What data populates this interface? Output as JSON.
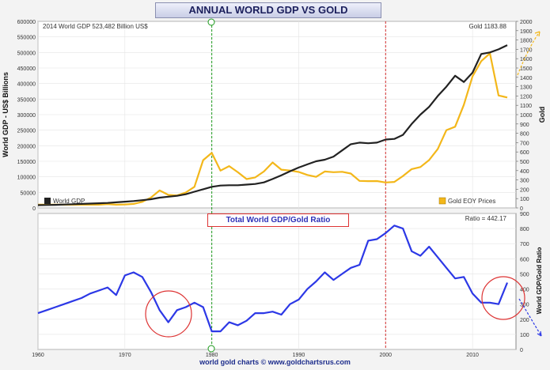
{
  "header": {
    "title": "ANNUAL WORLD GDP VS GOLD",
    "gdp_note": "2014  World GDP 523,482 Billion US$",
    "gold_note": "Gold 1183.88",
    "ratio_note": "Ratio = 442.17",
    "ratio_box": "Total World GDP/Gold Ratio",
    "footer": "world gold charts © www.goldchartsrus.com"
  },
  "colors": {
    "gdp": "#222222",
    "gold": "#f3b71a",
    "ratio": "#2c38e6",
    "green_line": "#1a9a1a",
    "red_line": "#d22b2b",
    "circle": "#dd3333"
  },
  "chart_data": [
    {
      "type": "line",
      "title": "ANNUAL WORLD GDP VS GOLD",
      "ylabel": "World GDP - US$ Billions",
      "y2label": "Gold",
      "xlim": [
        1960,
        2015
      ],
      "ylim": [
        0,
        600000
      ],
      "y2lim": [
        0,
        2000
      ],
      "x_ticks": [
        "1960",
        "1970",
        "1980",
        "1990",
        "2000",
        "2010"
      ],
      "y_ticks": [
        "0",
        "50000",
        "100000",
        "150000",
        "200000",
        "250000",
        "300000",
        "350000",
        "400000",
        "450000",
        "500000",
        "550000",
        "600000"
      ],
      "y2_ticks": [
        "0",
        "100",
        "200",
        "300",
        "400",
        "500",
        "600",
        "700",
        "800",
        "900",
        "1000",
        "1100",
        "1200",
        "1300",
        "1400",
        "1500",
        "1600",
        "1700",
        "1800",
        "1900",
        "2000"
      ],
      "legend": [
        "World GDP",
        "Gold EOY Prices"
      ],
      "series": [
        {
          "name": "World GDP",
          "x": [
            1960,
            1961,
            1962,
            1963,
            1964,
            1965,
            1966,
            1967,
            1968,
            1969,
            1970,
            1971,
            1972,
            1973,
            1974,
            1975,
            1976,
            1977,
            1978,
            1979,
            1980,
            1981,
            1982,
            1983,
            1984,
            1985,
            1986,
            1987,
            1988,
            1989,
            1990,
            1991,
            1992,
            1993,
            1994,
            1995,
            1996,
            1997,
            1998,
            1999,
            2000,
            2001,
            2002,
            2003,
            2004,
            2005,
            2006,
            2007,
            2008,
            2009,
            2010,
            2011,
            2012,
            2013,
            2014
          ],
          "values": [
            9000,
            9500,
            10000,
            11000,
            12000,
            13000,
            14000,
            15000,
            16000,
            18000,
            20000,
            22000,
            25000,
            28000,
            33000,
            36000,
            39000,
            44000,
            52000,
            60000,
            68000,
            72000,
            73000,
            73000,
            75000,
            77000,
            82000,
            93000,
            105000,
            118000,
            130000,
            140000,
            150000,
            155000,
            165000,
            185000,
            205000,
            210000,
            208000,
            210000,
            220000,
            222000,
            235000,
            270000,
            300000,
            325000,
            360000,
            390000,
            425000,
            405000,
            435000,
            495000,
            500000,
            510000,
            523482
          ]
        },
        {
          "name": "Gold EOY Prices",
          "x": [
            1960,
            1961,
            1962,
            1963,
            1964,
            1965,
            1966,
            1967,
            1968,
            1969,
            1970,
            1971,
            1972,
            1973,
            1974,
            1975,
            1976,
            1977,
            1978,
            1979,
            1980,
            1981,
            1982,
            1983,
            1984,
            1985,
            1986,
            1987,
            1988,
            1989,
            1990,
            1991,
            1992,
            1993,
            1994,
            1995,
            1996,
            1997,
            1998,
            1999,
            2000,
            2001,
            2002,
            2003,
            2004,
            2005,
            2006,
            2007,
            2008,
            2009,
            2010,
            2011,
            2012,
            2013,
            2014
          ],
          "values": [
            35,
            35,
            35,
            35,
            35,
            35,
            35,
            35,
            41,
            35,
            37,
            43,
            65,
            112,
            187,
            140,
            134,
            165,
            226,
            512,
            590,
            400,
            448,
            382,
            309,
            327,
            391,
            487,
            410,
            401,
            386,
            353,
            333,
            391,
            383,
            387,
            369,
            290,
            287,
            288,
            273,
            279,
            342,
            416,
            438,
            513,
            632,
            834,
            870,
            1104,
            1410,
            1574,
            1657,
            1205,
            1183.88
          ]
        }
      ]
    },
    {
      "type": "line",
      "title": "Total World GDP/Gold Ratio",
      "ylabel": "World GDP/Gold Ratio",
      "xlim": [
        1960,
        2015
      ],
      "ylim": [
        0,
        900
      ],
      "y_ticks": [
        "0",
        "100",
        "200",
        "300",
        "400",
        "500",
        "600",
        "700",
        "800",
        "900"
      ],
      "series": [
        {
          "name": "World GDP/Gold Ratio",
          "x": [
            1960,
            1961,
            1962,
            1963,
            1964,
            1965,
            1966,
            1967,
            1968,
            1969,
            1970,
            1971,
            1972,
            1973,
            1974,
            1975,
            1976,
            1977,
            1978,
            1979,
            1980,
            1981,
            1982,
            1983,
            1984,
            1985,
            1986,
            1987,
            1988,
            1989,
            1990,
            1991,
            1992,
            1993,
            1994,
            1995,
            1996,
            1997,
            1998,
            1999,
            2000,
            2001,
            2002,
            2003,
            2004,
            2005,
            2006,
            2007,
            2008,
            2009,
            2010,
            2011,
            2012,
            2013,
            2014
          ],
          "values": [
            240,
            260,
            280,
            300,
            320,
            340,
            370,
            390,
            410,
            360,
            490,
            510,
            480,
            380,
            260,
            180,
            260,
            280,
            310,
            280,
            120,
            120,
            180,
            160,
            190,
            240,
            240,
            250,
            230,
            300,
            330,
            400,
            450,
            510,
            460,
            500,
            540,
            560,
            720,
            730,
            770,
            820,
            800,
            650,
            620,
            680,
            610,
            540,
            470,
            480,
            370,
            310,
            310,
            300,
            442.17
          ]
        }
      ]
    }
  ]
}
